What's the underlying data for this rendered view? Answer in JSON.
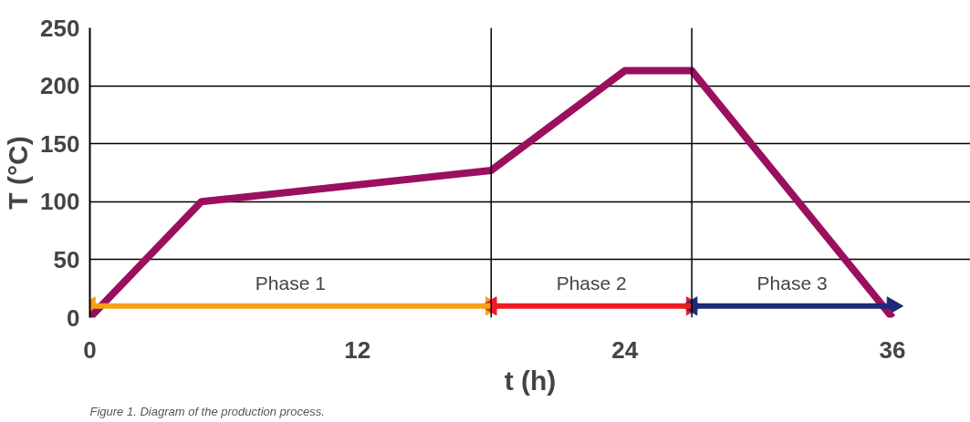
{
  "chart_data": {
    "type": "line",
    "xlabel": "t (h)",
    "ylabel": "T (°C)",
    "x": [
      0,
      5,
      18,
      24,
      27,
      36
    ],
    "series": [
      {
        "color": "#9b0f5f",
        "values": [
          0,
          100,
          127,
          213,
          213,
          0
        ]
      },
      {
        "name": "Phase 1",
        "color": "#f7a11a",
        "x": [
          0,
          18
        ],
        "values": [
          10,
          10
        ],
        "marker": "triangle"
      },
      {
        "name": "Phase 2",
        "color": "#ed1c24",
        "x": [
          18,
          27
        ],
        "values": [
          10,
          10
        ],
        "marker": "triangle"
      },
      {
        "name": "Phase 3",
        "color": "#1f2a7a",
        "x": [
          27,
          36
        ],
        "values": [
          10,
          10
        ],
        "marker": "triangle"
      }
    ],
    "xlim": [
      0,
      39.5
    ],
    "ylim": [
      0,
      250
    ],
    "xticks": [
      0,
      12,
      24,
      36
    ],
    "yticks": [
      0,
      50,
      100,
      150,
      200,
      250
    ],
    "grid": "y",
    "line_style": "solid",
    "ref_lines": [
      {
        "axis": "x",
        "value": 18,
        "color": "#000000"
      },
      {
        "axis": "x",
        "value": 27,
        "color": "#000000"
      }
    ],
    "annotations": [
      "Figure 1. Diagram of the production process."
    ]
  }
}
